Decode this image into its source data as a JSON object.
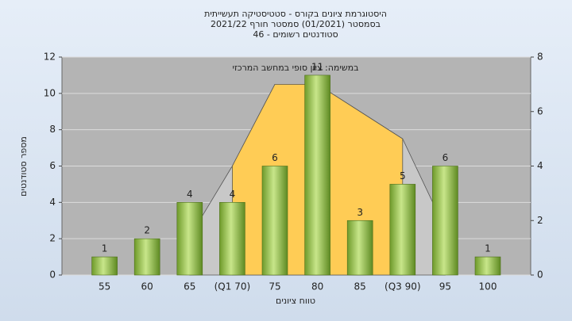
{
  "chart_data": {
    "type": "bar",
    "title": "היסטוגרמת ציונים בקורס - סטטיסטיקה תעשייתית",
    "subtitle": "בסמסטר  (01/2021)  סמסטר חורף 2021/22",
    "subtitle2": "סטודנטים רשומים - 46",
    "annotation": "במשימה: ציון סופי במחשב המרכזי",
    "xlabel": "טווח ציונים",
    "ylabel": "מספר סטודנטים",
    "categories": [
      "55",
      "60",
      "65",
      "(Q1 70)",
      "75",
      "80",
      "85",
      "(Q3 90)",
      "95",
      "100"
    ],
    "series": [
      {
        "values": [
          1,
          2,
          4,
          4,
          6,
          11,
          3,
          5,
          6,
          1
        ],
        "color": "#8cbc3c"
      },
      {
        "type": "area",
        "axis": "y2",
        "values": [
          null,
          null,
          1.4,
          4,
          7,
          7,
          6,
          5,
          1.7,
          null
        ],
        "color": "#c8c8c8",
        "highlight_color": "#ffcc55"
      }
    ],
    "ylim": [
      0,
      12
    ],
    "yticks": [
      0,
      2,
      4,
      6,
      8,
      10,
      12
    ],
    "y2lim": [
      0,
      8
    ],
    "y2ticks": [
      0,
      2,
      4,
      6,
      8
    ],
    "grid": true
  }
}
